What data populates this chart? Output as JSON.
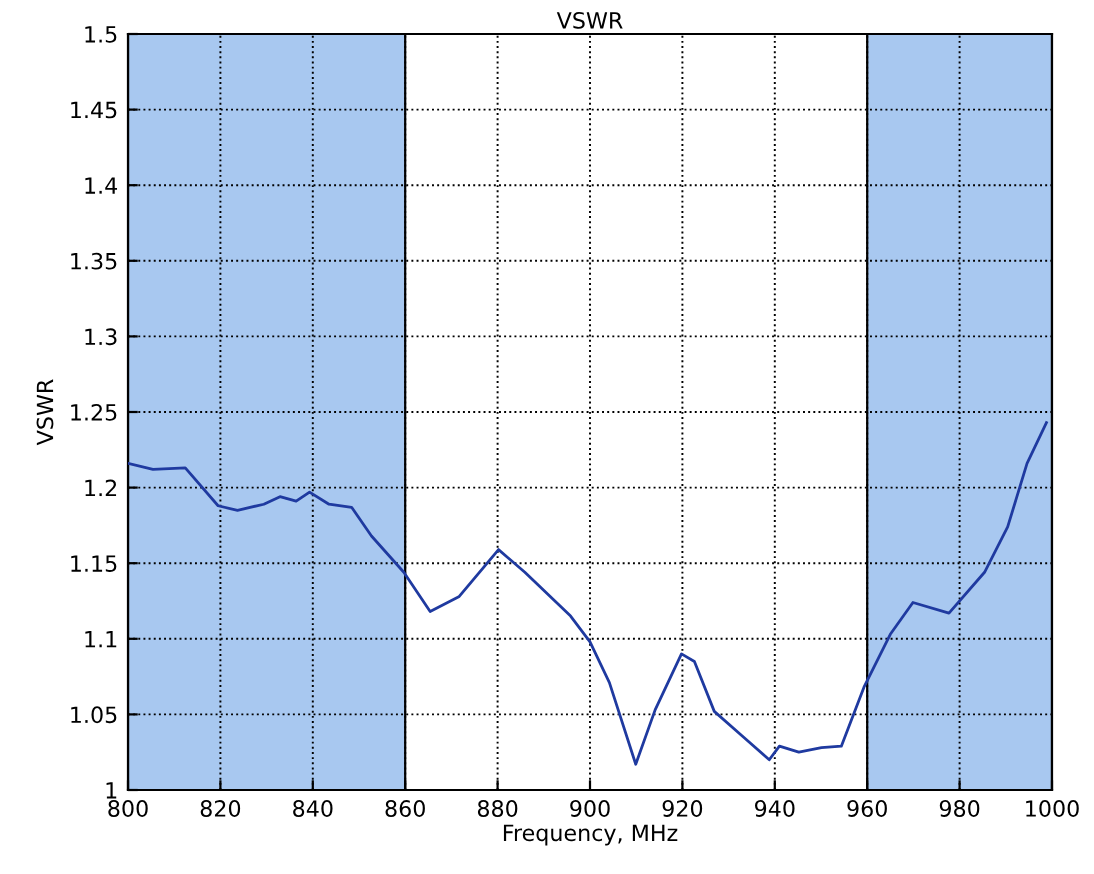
{
  "chart_data": {
    "type": "line",
    "title": "VSWR",
    "xlabel": "Frequency, MHz",
    "ylabel": "VSWR",
    "xlim": [
      800,
      1000
    ],
    "xticks": [
      800,
      820,
      840,
      860,
      880,
      900,
      920,
      940,
      960,
      980,
      1000
    ],
    "ylim": [
      1,
      1.5
    ],
    "yticks": [
      {
        "value": 1,
        "label": "1"
      },
      1.05,
      1.1,
      1.15,
      1.2,
      1.25,
      1.3,
      1.35,
      1.4,
      1.45,
      1.5
    ],
    "grid": true,
    "line_style": "solid",
    "marker": "none",
    "bands": [
      {
        "axis": "x",
        "from": 800,
        "to": 860,
        "color": "#a8c8f0"
      },
      {
        "axis": "x",
        "from": 960,
        "to": 1000,
        "color": "#a8c8f0"
      }
    ],
    "series": [
      {
        "color": "#1f3aa0",
        "x": [
          800,
          805.4,
          812.4,
          819.5,
          823.7,
          829.4,
          832.9,
          836.4,
          839.3,
          843.5,
          848.4,
          852.7,
          859.7,
          865.4,
          871.7,
          880.2,
          885.9,
          895.8,
          900,
          904.2,
          909.9,
          914.1,
          919.8,
          922.6,
          926.9,
          933.2,
          938.8,
          941,
          945.2,
          950.1,
          954.4,
          959.3,
          965,
          969.9,
          977.7,
          985.4,
          990.4,
          994.6,
          998.8
        ],
        "values": [
          1.216,
          1.212,
          1.213,
          1.188,
          1.185,
          1.189,
          1.194,
          1.191,
          1.197,
          1.189,
          1.187,
          1.168,
          1.144,
          1.118,
          1.128,
          1.159,
          1.144,
          1.115,
          1.098,
          1.071,
          1.017,
          1.053,
          1.09,
          1.085,
          1.052,
          1.035,
          1.02,
          1.029,
          1.025,
          1.028,
          1.029,
          1.068,
          1.103,
          1.124,
          1.117,
          1.144,
          1.174,
          1.216,
          1.243
        ]
      }
    ]
  }
}
